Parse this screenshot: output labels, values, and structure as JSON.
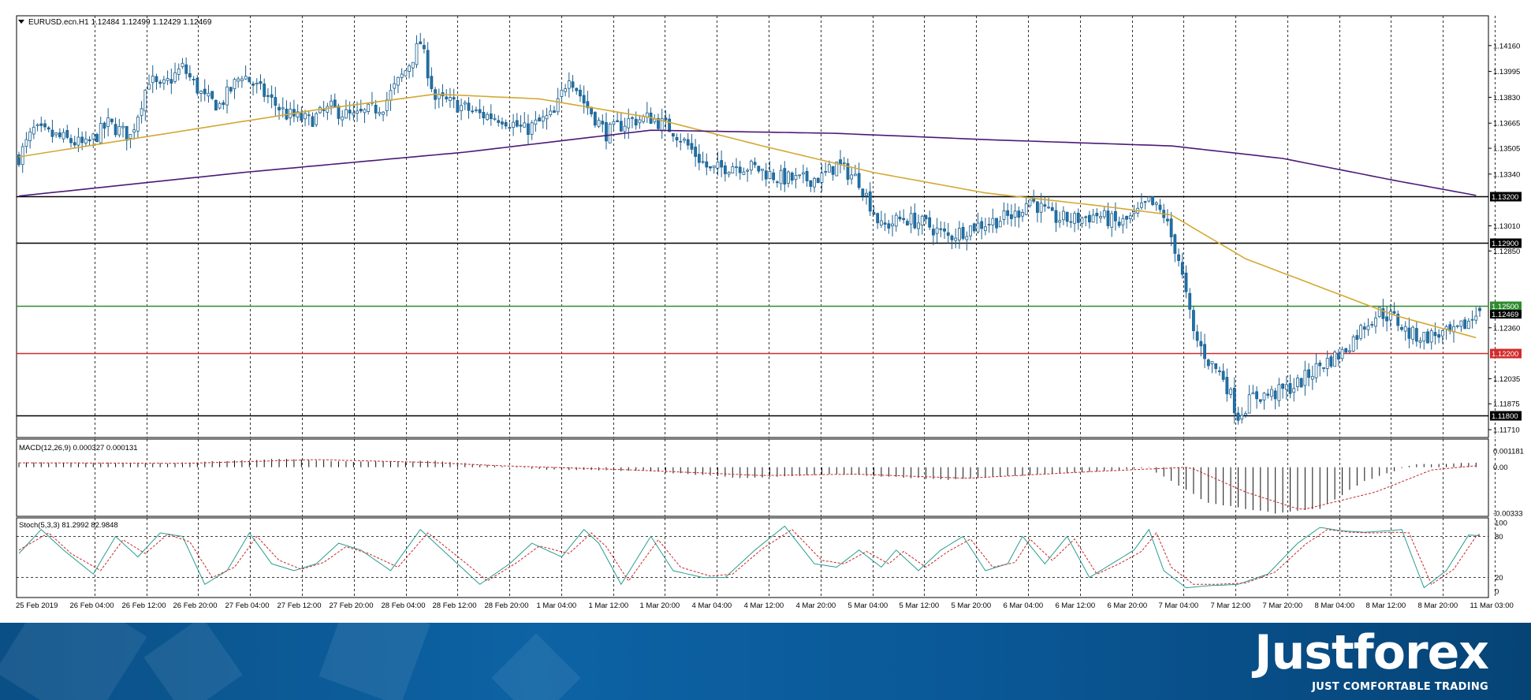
{
  "chart_data": [
    {
      "type": "candlestick",
      "title": "EURUSD.ecn.H1  1.12484 1.12499 1.12429 1.12469",
      "symbol": "EURUSD.ecn",
      "timeframe": "H1",
      "ohlc_last": {
        "open": 1.12484,
        "high": 1.12499,
        "low": 1.12429,
        "close": 1.12469
      },
      "ylim": [
        1.1166,
        1.1435
      ],
      "y_ticks": [
        "1.14160",
        "1.13995",
        "1.13830",
        "1.13665",
        "1.13505",
        "1.13340",
        "1.13010",
        "1.12850",
        "1.12360",
        "1.12035",
        "1.11875",
        "1.11710"
      ],
      "x_tick_labels": [
        "25 Feb 2019",
        "26 Feb 04:00",
        "26 Feb 12:00",
        "26 Feb 20:00",
        "27 Feb 04:00",
        "27 Feb 12:00",
        "27 Feb 20:00",
        "28 Feb 04:00",
        "28 Feb 12:00",
        "28 Feb 20:00",
        "1 Mar 04:00",
        "1 Mar 12:00",
        "1 Mar 20:00",
        "4 Mar 04:00",
        "4 Mar 12:00",
        "4 Mar 20:00",
        "5 Mar 04:00",
        "5 Mar 12:00",
        "5 Mar 20:00",
        "6 Mar 04:00",
        "6 Mar 12:00",
        "6 Mar 20:00",
        "7 Mar 04:00",
        "7 Mar 12:00",
        "7 Mar 20:00",
        "8 Mar 04:00",
        "8 Mar 12:00",
        "8 Mar 20:00",
        "11 Mar 03:00"
      ],
      "bull_color": "#ffffff",
      "bear_color": "#1f73ad",
      "close_path": [
        [
          0,
          1.1345
        ],
        [
          4,
          1.1362
        ],
        [
          10,
          1.1358
        ],
        [
          18,
          1.1352
        ],
        [
          24,
          1.1366
        ],
        [
          30,
          1.1358
        ],
        [
          35,
          1.1395
        ],
        [
          38,
          1.1388
        ],
        [
          44,
          1.1402
        ],
        [
          50,
          1.1382
        ],
        [
          54,
          1.1378
        ],
        [
          60,
          1.1398
        ],
        [
          66,
          1.1385
        ],
        [
          72,
          1.1372
        ],
        [
          78,
          1.1368
        ],
        [
          84,
          1.1376
        ],
        [
          90,
          1.137
        ],
        [
          98,
          1.1378
        ],
        [
          104,
          1.14
        ],
        [
          108,
          1.1418
        ],
        [
          112,
          1.1382
        ],
        [
          118,
          1.1378
        ],
        [
          124,
          1.1372
        ],
        [
          130,
          1.137
        ],
        [
          136,
          1.1362
        ],
        [
          144,
          1.1372
        ],
        [
          148,
          1.1398
        ],
        [
          152,
          1.138
        ],
        [
          158,
          1.136
        ],
        [
          164,
          1.1368
        ],
        [
          170,
          1.137
        ],
        [
          176,
          1.1362
        ],
        [
          180,
          1.1352
        ],
        [
          186,
          1.1336
        ],
        [
          192,
          1.134
        ],
        [
          198,
          1.1338
        ],
        [
          204,
          1.1332
        ],
        [
          210,
          1.133
        ],
        [
          216,
          1.1332
        ],
        [
          220,
          1.134
        ],
        [
          226,
          1.133
        ],
        [
          232,
          1.13
        ],
        [
          238,
          1.1306
        ],
        [
          244,
          1.1302
        ],
        [
          250,
          1.1294
        ],
        [
          256,
          1.13
        ],
        [
          262,
          1.1304
        ],
        [
          268,
          1.1308
        ],
        [
          272,
          1.1318
        ],
        [
          278,
          1.1306
        ],
        [
          284,
          1.1305
        ],
        [
          290,
          1.1308
        ],
        [
          296,
          1.1302
        ],
        [
          300,
          1.1307
        ],
        [
          304,
          1.1316
        ],
        [
          308,
          1.1308
        ],
        [
          312,
          1.128
        ],
        [
          316,
          1.1232
        ],
        [
          320,
          1.1215
        ],
        [
          324,
          1.1205
        ],
        [
          328,
          1.118
        ],
        [
          332,
          1.1192
        ],
        [
          338,
          1.1194
        ],
        [
          344,
          1.12
        ],
        [
          350,
          1.1212
        ],
        [
          356,
          1.122
        ],
        [
          362,
          1.1238
        ],
        [
          366,
          1.1246
        ],
        [
          370,
          1.1242
        ],
        [
          374,
          1.1232
        ],
        [
          378,
          1.123
        ],
        [
          382,
          1.1232
        ],
        [
          386,
          1.1232
        ],
        [
          390,
          1.124
        ],
        [
          393,
          1.12469
        ]
      ],
      "moving_averages": [
        {
          "color": "#d4a834",
          "points": [
            [
              0,
              1.1345
            ],
            [
              40,
              1.136
            ],
            [
              80,
              1.1375
            ],
            [
              112,
              1.1385
            ],
            [
              140,
              1.1382
            ],
            [
              170,
              1.137
            ],
            [
              200,
              1.1352
            ],
            [
              230,
              1.1335
            ],
            [
              260,
              1.1322
            ],
            [
              290,
              1.1314
            ],
            [
              310,
              1.1308
            ],
            [
              330,
              1.128
            ],
            [
              350,
              1.1262
            ],
            [
              370,
              1.1244
            ],
            [
              393,
              1.1229
            ]
          ]
        },
        {
          "color": "#4b1a78",
          "points": [
            [
              0,
              1.132
            ],
            [
              60,
              1.1335
            ],
            [
              120,
              1.1348
            ],
            [
              170,
              1.1362
            ],
            [
              220,
              1.136
            ],
            [
              260,
              1.1356
            ],
            [
              310,
              1.1352
            ],
            [
              340,
              1.1344
            ],
            [
              370,
              1.133
            ],
            [
              393,
              1.132
            ]
          ]
        }
      ],
      "levels": [
        {
          "price": 1.132,
          "label": "1.13200",
          "color": "#000000"
        },
        {
          "price": 1.129,
          "label": "1.12900",
          "color": "#000000"
        },
        {
          "price": 1.125,
          "label": "1.12500",
          "color": "#2e8b2e"
        },
        {
          "price": 1.122,
          "label": "1.12200",
          "color": "#d22b2b"
        },
        {
          "price": 1.118,
          "label": "1.11800",
          "color": "#000000"
        }
      ],
      "current_price_label": "1.12469"
    },
    {
      "type": "bar",
      "title": "MACD(12,26,9) 0.000327 0.000131",
      "ylim": [
        -0.00333,
        0.00181
      ],
      "y_ticks": [
        "0.001181",
        "0.00",
        "-0.00333"
      ],
      "histogram_path": [
        [
          0,
          0.00035
        ],
        [
          40,
          0.00028
        ],
        [
          70,
          0.0006
        ],
        [
          90,
          0.0004
        ],
        [
          112,
          0.00045
        ],
        [
          140,
          -0.00015
        ],
        [
          170,
          -0.0003
        ],
        [
          195,
          -0.0008
        ],
        [
          220,
          -0.0005
        ],
        [
          250,
          -0.0009
        ],
        [
          290,
          -0.0003
        ],
        [
          304,
          -5e-05
        ],
        [
          320,
          -0.0026
        ],
        [
          338,
          -0.00333
        ],
        [
          350,
          -0.003
        ],
        [
          362,
          -0.001
        ],
        [
          375,
          0.0002
        ],
        [
          393,
          0.00032
        ]
      ],
      "signal_path": [
        [
          0,
          0.00032
        ],
        [
          45,
          0.00028
        ],
        [
          80,
          0.00055
        ],
        [
          110,
          0.00035
        ],
        [
          130,
          0.0001
        ],
        [
          165,
          -0.0002
        ],
        [
          200,
          -0.0006
        ],
        [
          225,
          -0.0005
        ],
        [
          255,
          -0.0008
        ],
        [
          290,
          -0.0003
        ],
        [
          315,
          0.0
        ],
        [
          330,
          -0.0018
        ],
        [
          345,
          -0.0031
        ],
        [
          365,
          -0.0018
        ],
        [
          380,
          -0.0002
        ],
        [
          393,
          0.00013
        ]
      ],
      "signal_color": "#c62828"
    },
    {
      "type": "line",
      "title": "Stoch(5,3,3) 81.2992 82.9848",
      "ylim": [
        0,
        100
      ],
      "y_ticks": [
        "100",
        "80",
        "20",
        "0"
      ],
      "main_color": "#2a9d8f",
      "signal_color": "#c62828",
      "main_path": [
        [
          0,
          55
        ],
        [
          6,
          90
        ],
        [
          12,
          60
        ],
        [
          20,
          25
        ],
        [
          26,
          80
        ],
        [
          32,
          50
        ],
        [
          38,
          85
        ],
        [
          44,
          80
        ],
        [
          50,
          10
        ],
        [
          56,
          30
        ],
        [
          62,
          85
        ],
        [
          68,
          40
        ],
        [
          74,
          30
        ],
        [
          80,
          40
        ],
        [
          86,
          70
        ],
        [
          92,
          60
        ],
        [
          100,
          30
        ],
        [
          108,
          90
        ],
        [
          112,
          70
        ],
        [
          118,
          40
        ],
        [
          124,
          10
        ],
        [
          132,
          40
        ],
        [
          138,
          70
        ],
        [
          146,
          50
        ],
        [
          152,
          90
        ],
        [
          156,
          70
        ],
        [
          162,
          10
        ],
        [
          170,
          80
        ],
        [
          176,
          30
        ],
        [
          184,
          20
        ],
        [
          190,
          20
        ],
        [
          198,
          60
        ],
        [
          206,
          95
        ],
        [
          214,
          40
        ],
        [
          220,
          35
        ],
        [
          226,
          60
        ],
        [
          232,
          35
        ],
        [
          236,
          60
        ],
        [
          242,
          30
        ],
        [
          248,
          60
        ],
        [
          254,
          80
        ],
        [
          260,
          30
        ],
        [
          266,
          40
        ],
        [
          270,
          80
        ],
        [
          276,
          40
        ],
        [
          282,
          80
        ],
        [
          288,
          20
        ],
        [
          294,
          40
        ],
        [
          300,
          60
        ],
        [
          304,
          90
        ],
        [
          308,
          30
        ],
        [
          314,
          5
        ],
        [
          320,
          8
        ],
        [
          328,
          10
        ],
        [
          336,
          25
        ],
        [
          344,
          70
        ],
        [
          350,
          93
        ],
        [
          356,
          88
        ],
        [
          362,
          86
        ],
        [
          368,
          88
        ],
        [
          372,
          90
        ],
        [
          378,
          5
        ],
        [
          384,
          30
        ],
        [
          390,
          82
        ],
        [
          393,
          81
        ]
      ],
      "signal_path": [
        [
          0,
          60
        ],
        [
          8,
          85
        ],
        [
          14,
          55
        ],
        [
          22,
          30
        ],
        [
          28,
          75
        ],
        [
          34,
          55
        ],
        [
          40,
          83
        ],
        [
          46,
          72
        ],
        [
          52,
          20
        ],
        [
          58,
          35
        ],
        [
          64,
          80
        ],
        [
          70,
          45
        ],
        [
          76,
          32
        ],
        [
          82,
          42
        ],
        [
          88,
          65
        ],
        [
          94,
          55
        ],
        [
          102,
          35
        ],
        [
          110,
          85
        ],
        [
          114,
          68
        ],
        [
          120,
          42
        ],
        [
          126,
          15
        ],
        [
          134,
          42
        ],
        [
          140,
          66
        ],
        [
          148,
          55
        ],
        [
          154,
          85
        ],
        [
          158,
          65
        ],
        [
          164,
          15
        ],
        [
          172,
          75
        ],
        [
          178,
          35
        ],
        [
          186,
          22
        ],
        [
          192,
          25
        ],
        [
          200,
          62
        ],
        [
          208,
          90
        ],
        [
          216,
          45
        ],
        [
          222,
          40
        ],
        [
          228,
          58
        ],
        [
          234,
          40
        ],
        [
          238,
          58
        ],
        [
          244,
          35
        ],
        [
          250,
          58
        ],
        [
          256,
          76
        ],
        [
          262,
          35
        ],
        [
          268,
          42
        ],
        [
          272,
          76
        ],
        [
          278,
          45
        ],
        [
          284,
          76
        ],
        [
          290,
          25
        ],
        [
          296,
          40
        ],
        [
          302,
          58
        ],
        [
          306,
          85
        ],
        [
          310,
          35
        ],
        [
          316,
          10
        ],
        [
          322,
          10
        ],
        [
          330,
          12
        ],
        [
          338,
          28
        ],
        [
          346,
          68
        ],
        [
          352,
          90
        ],
        [
          358,
          86
        ],
        [
          364,
          85
        ],
        [
          370,
          86
        ],
        [
          374,
          85
        ],
        [
          380,
          10
        ],
        [
          386,
          32
        ],
        [
          392,
          80
        ],
        [
          393,
          83
        ]
      ]
    }
  ],
  "logo": {
    "brand": "Justforex",
    "tagline": "JUST COMFORTABLE TRADING"
  }
}
